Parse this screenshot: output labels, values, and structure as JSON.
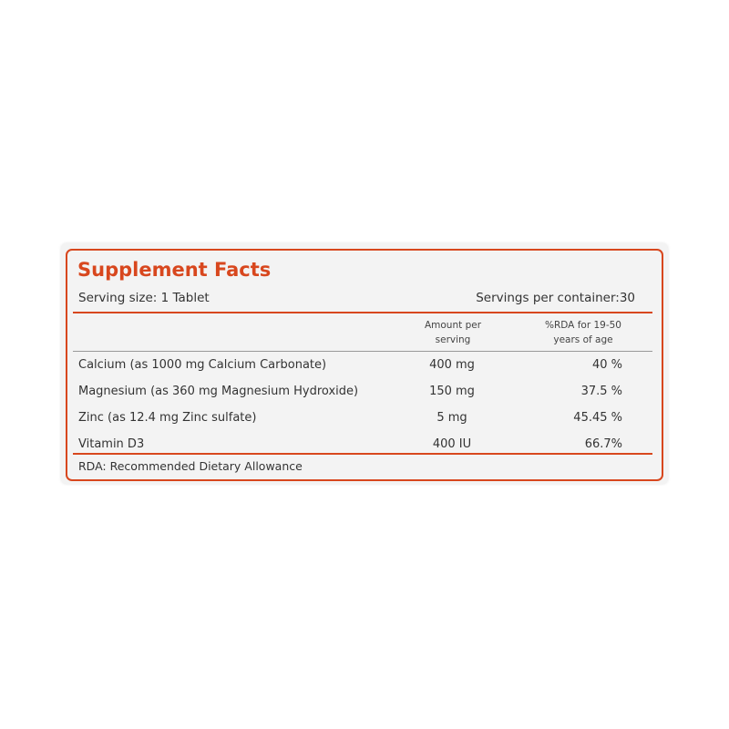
{
  "label": {
    "title": "Supplement Facts",
    "serving_size": "Serving size: 1 Tablet",
    "servings_per_container": "Servings per container:30",
    "table": {
      "header": [
        "Amount per serving",
        "%RDA for 19-50 years of age"
      ],
      "rows": [
        [
          "Calcium (as 1000 mg Calcium Carbonate)",
          "400 mg",
          "40 %"
        ],
        [
          "Magnesium (as 360 mg Magnesium Hydroxide)",
          "150 mg",
          "37.5 %"
        ],
        [
          "Zinc (as 12.4 mg Zinc sulfate)",
          "5 mg",
          "45.45 %"
        ],
        [
          "Vitamin D3",
          "400 IU",
          "66.7%"
        ]
      ]
    },
    "footnote": "RDA: Recommended Dietary Allowance"
  }
}
